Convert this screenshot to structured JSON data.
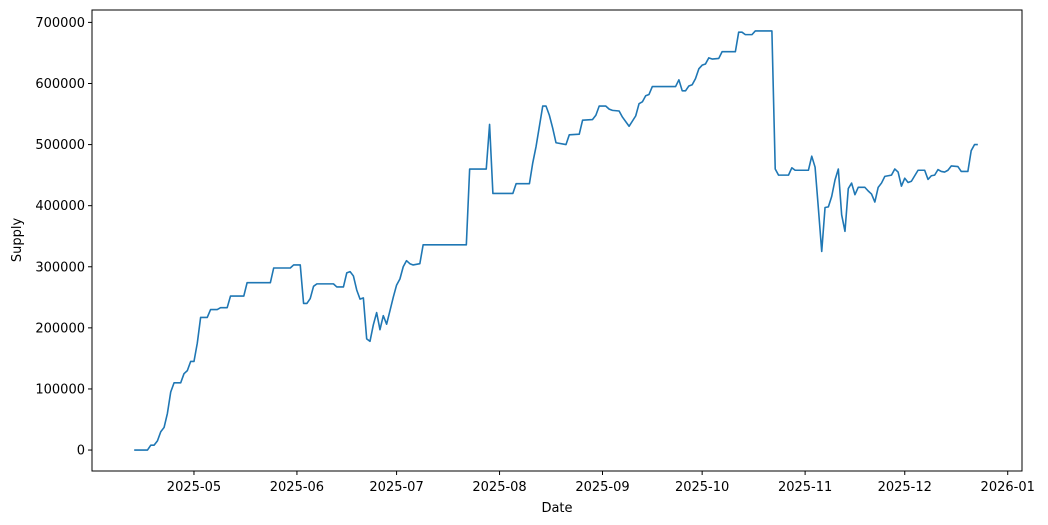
{
  "chart_data": {
    "type": "line",
    "x_label": "Date",
    "y_label": "Supply",
    "color": "#1f77b4",
    "xlim": [
      20178.3,
      20458.3
    ],
    "ylim": [
      -34300,
      720300
    ],
    "xticks": [
      {
        "value": 20209,
        "label": "2025-05"
      },
      {
        "value": 20240,
        "label": "2025-06"
      },
      {
        "value": 20270,
        "label": "2025-07"
      },
      {
        "value": 20301,
        "label": "2025-08"
      },
      {
        "value": 20332,
        "label": "2025-09"
      },
      {
        "value": 20362,
        "label": "2025-10"
      },
      {
        "value": 20393,
        "label": "2025-11"
      },
      {
        "value": 20423,
        "label": "2025-12"
      },
      {
        "value": 20454,
        "label": "2026-01"
      }
    ],
    "yticks": [
      0,
      100000,
      200000,
      300000,
      400000,
      500000,
      600000,
      700000
    ],
    "x": [
      20191,
      20195,
      20196,
      20197,
      20198,
      20199,
      20200,
      20201,
      20202,
      20203,
      20205,
      20206,
      20207,
      20208,
      20209,
      20210,
      20211,
      20213,
      20214,
      20216,
      20217,
      20219,
      20220,
      20224,
      20225,
      20232,
      20233,
      20238,
      20239,
      20241,
      20242,
      20243,
      20244,
      20245,
      20246,
      20251,
      20252,
      20254,
      20255,
      20256,
      20257,
      20258,
      20259,
      20260,
      20261,
      20262,
      20263,
      20264,
      20265,
      20266,
      20267,
      20268,
      20269,
      20270,
      20271,
      20272,
      20273,
      20274,
      20275,
      20277,
      20278,
      20291,
      20292,
      20297,
      20298,
      20299,
      20305,
      20306,
      20310,
      20311,
      20312,
      20314,
      20315,
      20316,
      20317,
      20318,
      20321,
      20322,
      20325,
      20326,
      20329,
      20330,
      20331,
      20333,
      20334,
      20335,
      20337,
      20338,
      20340,
      20342,
      20343,
      20344,
      20345,
      20346,
      20347,
      20354,
      20355,
      20356,
      20357,
      20358,
      20359,
      20360,
      20361,
      20362,
      20363,
      20364,
      20365,
      20367,
      20368,
      20372,
      20373,
      20374,
      20375,
      20377,
      20378,
      20383,
      20384,
      20385,
      20388,
      20389,
      20390,
      20394,
      20395,
      20396,
      20397,
      20398,
      20399,
      20400,
      20401,
      20402,
      20403,
      20404,
      20405,
      20406,
      20407,
      20408,
      20409,
      20411,
      20412,
      20413,
      20414,
      20415,
      20416,
      20417,
      20418,
      20419,
      20420,
      20421,
      20422,
      20423,
      20424,
      20425,
      20427,
      20429,
      20430,
      20431,
      20432,
      20433,
      20434,
      20435,
      20436,
      20437,
      20439,
      20440,
      20442,
      20443,
      20444,
      20445
    ],
    "values": [
      0,
      0,
      8000,
      8000,
      15000,
      30000,
      37000,
      60000,
      95000,
      110000,
      110000,
      125000,
      130000,
      145000,
      145000,
      175000,
      217000,
      217000,
      230000,
      230000,
      233000,
      233000,
      252000,
      252000,
      274000,
      274000,
      298000,
      298000,
      303000,
      303000,
      240000,
      240000,
      248000,
      268000,
      272000,
      272000,
      267000,
      267000,
      290000,
      292000,
      285000,
      262000,
      247000,
      249000,
      182000,
      178000,
      205000,
      225000,
      197000,
      220000,
      206000,
      228000,
      250000,
      270000,
      280000,
      300000,
      310000,
      305000,
      303000,
      305000,
      336000,
      336000,
      460000,
      460000,
      533000,
      420000,
      420000,
      436000,
      436000,
      470000,
      497000,
      563000,
      563000,
      548000,
      527000,
      503000,
      500000,
      516000,
      517000,
      540000,
      541000,
      548000,
      563000,
      563000,
      558000,
      556000,
      555000,
      545000,
      530000,
      547000,
      567000,
      570000,
      580000,
      582000,
      595000,
      595000,
      606000,
      588000,
      588000,
      596000,
      598000,
      608000,
      624000,
      630000,
      632000,
      642000,
      640000,
      641000,
      652000,
      652000,
      684000,
      684000,
      680000,
      680000,
      686000,
      686000,
      460000,
      450000,
      450000,
      462000,
      458000,
      458000,
      481000,
      463000,
      395000,
      325000,
      397000,
      398000,
      415000,
      442000,
      460000,
      385000,
      358000,
      428000,
      437000,
      418000,
      430000,
      430000,
      424000,
      419000,
      406000,
      430000,
      437000,
      448000,
      449000,
      450000,
      460000,
      455000,
      432000,
      445000,
      438000,
      440000,
      458000,
      458000,
      443000,
      449000,
      450000,
      459000,
      456000,
      455000,
      458000,
      465000,
      464000,
      456000,
      456000,
      490000,
      500000,
      500000
    ]
  }
}
